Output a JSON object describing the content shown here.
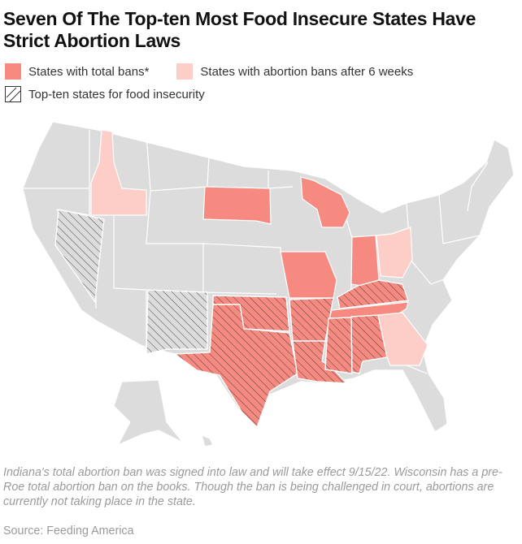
{
  "title": "Seven Of The Top-ten Most Food Insecure States Have Strict Abortion Laws",
  "legend": {
    "total_ban": "States with total bans*",
    "six_week_ban": "States with abortion bans after 6 weeks",
    "food_insecurity": "Top-ten states for food insecurity"
  },
  "colors": {
    "total_ban": "#f68a80",
    "six_week_ban": "#fdcdc7",
    "other": "#dcdcdc",
    "border": "#ffffff"
  },
  "note": "Indiana's total abortion ban was signed into law and will take effect 9/15/22. Wisconsin has a pre-Roe total abortion ban on the books. Though the ban is being challenged in court, abortions are currently not taking place in the state.",
  "source": "Source: Feeding America"
}
